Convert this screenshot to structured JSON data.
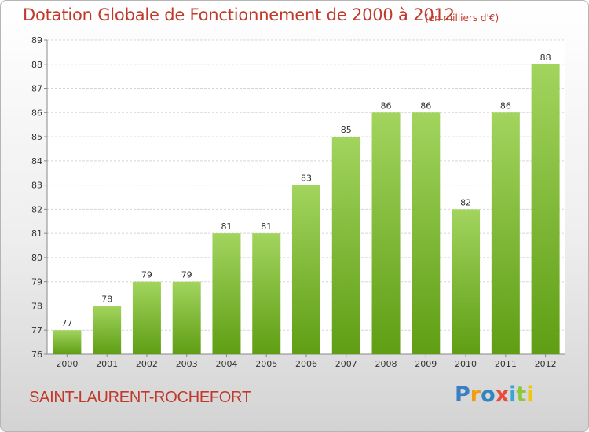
{
  "chart_data": {
    "type": "bar",
    "title": "Dotation Globale de Fonctionnement de 2000 à 2012",
    "unit_note": "(en milliers d'€)",
    "categories": [
      "2000",
      "2001",
      "2002",
      "2003",
      "2004",
      "2005",
      "2006",
      "2007",
      "2008",
      "2009",
      "2010",
      "2011",
      "2012"
    ],
    "values": [
      77,
      78,
      79,
      79,
      81,
      81,
      83,
      85,
      86,
      86,
      82,
      86,
      88
    ],
    "ylim": [
      76,
      89
    ],
    "yticks": [
      76,
      77,
      78,
      79,
      80,
      81,
      82,
      83,
      84,
      85,
      86,
      87,
      88,
      89
    ],
    "grid": true,
    "bar_color_top": "#a2d45e",
    "bar_color_bottom": "#5f9e14"
  },
  "commune": "SAINT-LAURENT-ROCHEFORT",
  "logo": {
    "text": "Proxiti",
    "letters": [
      {
        "char": "P",
        "color": "#3a7fc4"
      },
      {
        "char": "r",
        "color": "#f39c12"
      },
      {
        "char": "o",
        "color": "#2e86c1"
      },
      {
        "char": "x",
        "color": "#e74c3c"
      },
      {
        "char": "i",
        "color": "#3aa3d8"
      },
      {
        "char": "t",
        "color": "#8dc63f"
      },
      {
        "char": "i",
        "color": "#f1c40f"
      }
    ]
  }
}
